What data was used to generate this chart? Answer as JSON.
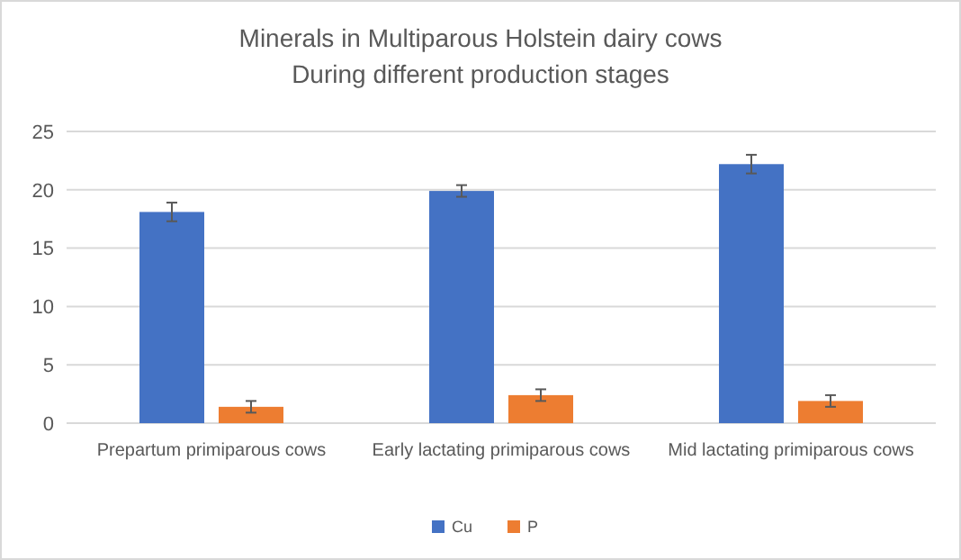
{
  "chart_data": {
    "type": "bar",
    "title": "Minerals in Multiparous Holstein dairy cows",
    "subtitle": "During different production stages",
    "categories": [
      "Prepartum primiparous cows",
      "Early lactating primiparous cows",
      "Mid lactating primiparous cows"
    ],
    "series": [
      {
        "name": "Cu",
        "color": "#4472c4",
        "values": [
          18.1,
          19.9,
          22.2
        ],
        "errors": [
          0.8,
          0.5,
          0.8
        ]
      },
      {
        "name": "P",
        "color": "#ed7d31",
        "values": [
          1.4,
          2.4,
          1.9
        ],
        "errors": [
          0.5,
          0.5,
          0.5
        ]
      }
    ],
    "ylim": [
      0,
      25
    ],
    "yticks": [
      0,
      5,
      10,
      15,
      20,
      25
    ],
    "grid": "y",
    "legend": "bottom"
  }
}
